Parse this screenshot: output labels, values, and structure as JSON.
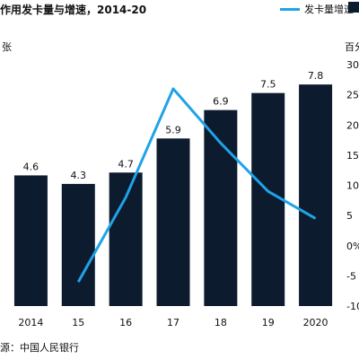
{
  "header": {
    "title": "作用发卡量与增速，2014-20",
    "legend_line_label": "发卡量增速"
  },
  "units": {
    "left": "张",
    "right": "百分"
  },
  "footer": {
    "source": "源：中国人民银行"
  },
  "chart_data": {
    "type": "bar",
    "categories": [
      "2014",
      "15",
      "16",
      "17",
      "18",
      "19",
      "2020"
    ],
    "series": [
      {
        "type": "bar",
        "values": [
          4.6,
          4.3,
          4.7,
          5.9,
          6.9,
          7.5,
          7.8
        ]
      },
      {
        "name": "发卡量增速",
        "type": "line",
        "axis": "right",
        "values": [
          null,
          -6,
          8,
          26,
          17,
          9,
          4.5
        ]
      }
    ],
    "y_left_range": [
      0,
      8.5
    ],
    "y_right": {
      "ticks": [
        "30",
        "25",
        "20",
        "15",
        "10",
        "5",
        "0%",
        "-5",
        "-10"
      ],
      "range": [
        -10,
        30
      ]
    },
    "colors": {
      "bar": "#0d1b2e",
      "line": "#1fa3e8"
    },
    "grid": false,
    "legend_position": "top-right"
  }
}
